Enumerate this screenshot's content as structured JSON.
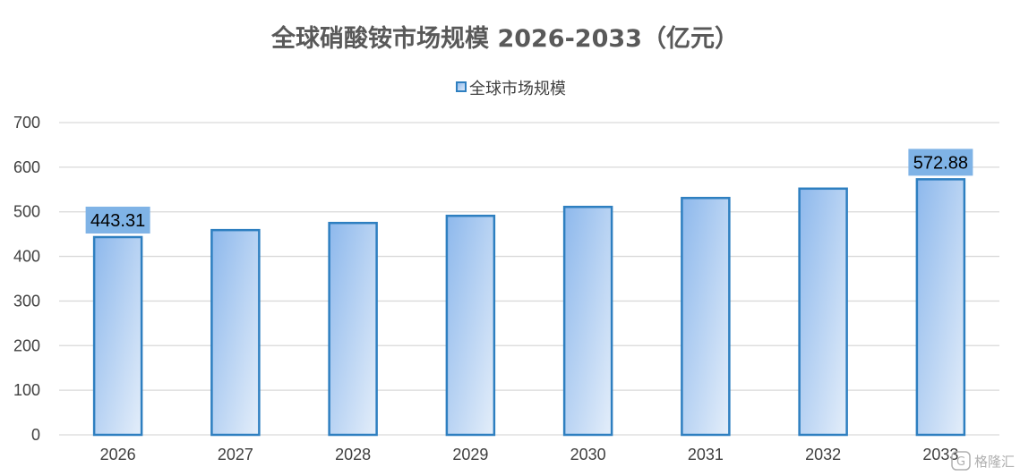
{
  "chart_data": {
    "type": "bar",
    "title": "全球硝酸铵市场规模 2026-2033（亿元）",
    "categories": [
      "2026",
      "2027",
      "2028",
      "2029",
      "2030",
      "2031",
      "2032",
      "2033"
    ],
    "series": [
      {
        "name": "全球市场规模",
        "values": [
          443.31,
          459,
          475,
          491,
          511,
          531,
          552,
          572.88
        ]
      }
    ],
    "data_labels": [
      {
        "category": "2026",
        "text": "443.31"
      },
      {
        "category": "2033",
        "text": "572.88"
      }
    ],
    "ylim": [
      0,
      700
    ],
    "yticks": [
      "0",
      "100",
      "200",
      "300",
      "400",
      "500",
      "600",
      "700"
    ],
    "grid": true,
    "legend_position": "top",
    "colors": {
      "bar_fill_start": "#8db8ec",
      "bar_fill_end": "#e4eefa",
      "bar_border": "#2e7fc0",
      "label_box": "#7fb3e6",
      "gridline": "#d9d9d9",
      "title": "#595959"
    }
  },
  "watermark": {
    "text": "格隆汇",
    "icon": "glh-logo-icon"
  }
}
